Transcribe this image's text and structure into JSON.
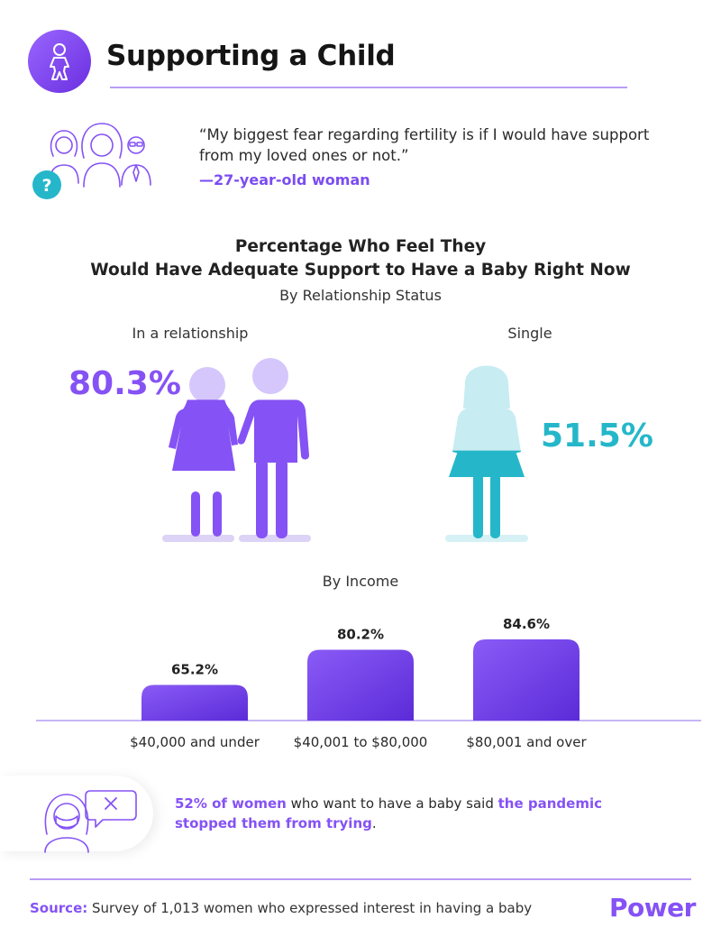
{
  "header": {
    "title": "Supporting a Child"
  },
  "quote": {
    "text": "“My biggest fear regarding fertility is if I would have support from my loved ones or not.”",
    "attribution": "—27-year-old woman"
  },
  "chart": {
    "title_line1": "Percentage Who Feel They",
    "title_line2": "Would Have Adequate Support to Have a Baby Right Now",
    "subtitle": "By Relationship Status",
    "relationship": {
      "label": "In a relationship",
      "value_text": "80.3%"
    },
    "single": {
      "label": "Single",
      "value_text": "51.5%"
    },
    "income_subtitle": "By Income"
  },
  "chart_data": [
    {
      "type": "pictograph",
      "subtitle": "By Relationship Status",
      "categories": [
        "In a relationship",
        "Single"
      ],
      "values": [
        80.3,
        51.5
      ],
      "unit": "%",
      "colors": [
        "#8552f5",
        "#25b7c9"
      ]
    },
    {
      "type": "bar",
      "subtitle": "By Income",
      "categories": [
        "$40,000 and under",
        "$40,001 to $80,000",
        "$80,001 and over"
      ],
      "values": [
        65.2,
        80.2,
        84.6
      ],
      "value_labels": [
        "65.2%",
        "80.2%",
        "84.6%"
      ],
      "unit": "%",
      "ylim": [
        0,
        100
      ],
      "colors": [
        "#8a5bf6",
        "#5b2bd8"
      ]
    }
  ],
  "callout": {
    "part1": "52% of women",
    "part2": " who want to have a baby said ",
    "part3": "the pandemic stopped them from trying",
    "part4": "."
  },
  "footer": {
    "source_label": "Source:",
    "source_text": " Survey of 1,013 women who expressed interest in having a baby",
    "brand": "Power"
  },
  "colors": {
    "accent": "#8552f5",
    "teal": "#25b7c9",
    "light_purple": "#d5c6fb",
    "light_teal": "#c7ecf2"
  },
  "icons": [
    "baby-icon",
    "family-icon",
    "question-icon",
    "woman-mask-icon",
    "close-icon"
  ]
}
